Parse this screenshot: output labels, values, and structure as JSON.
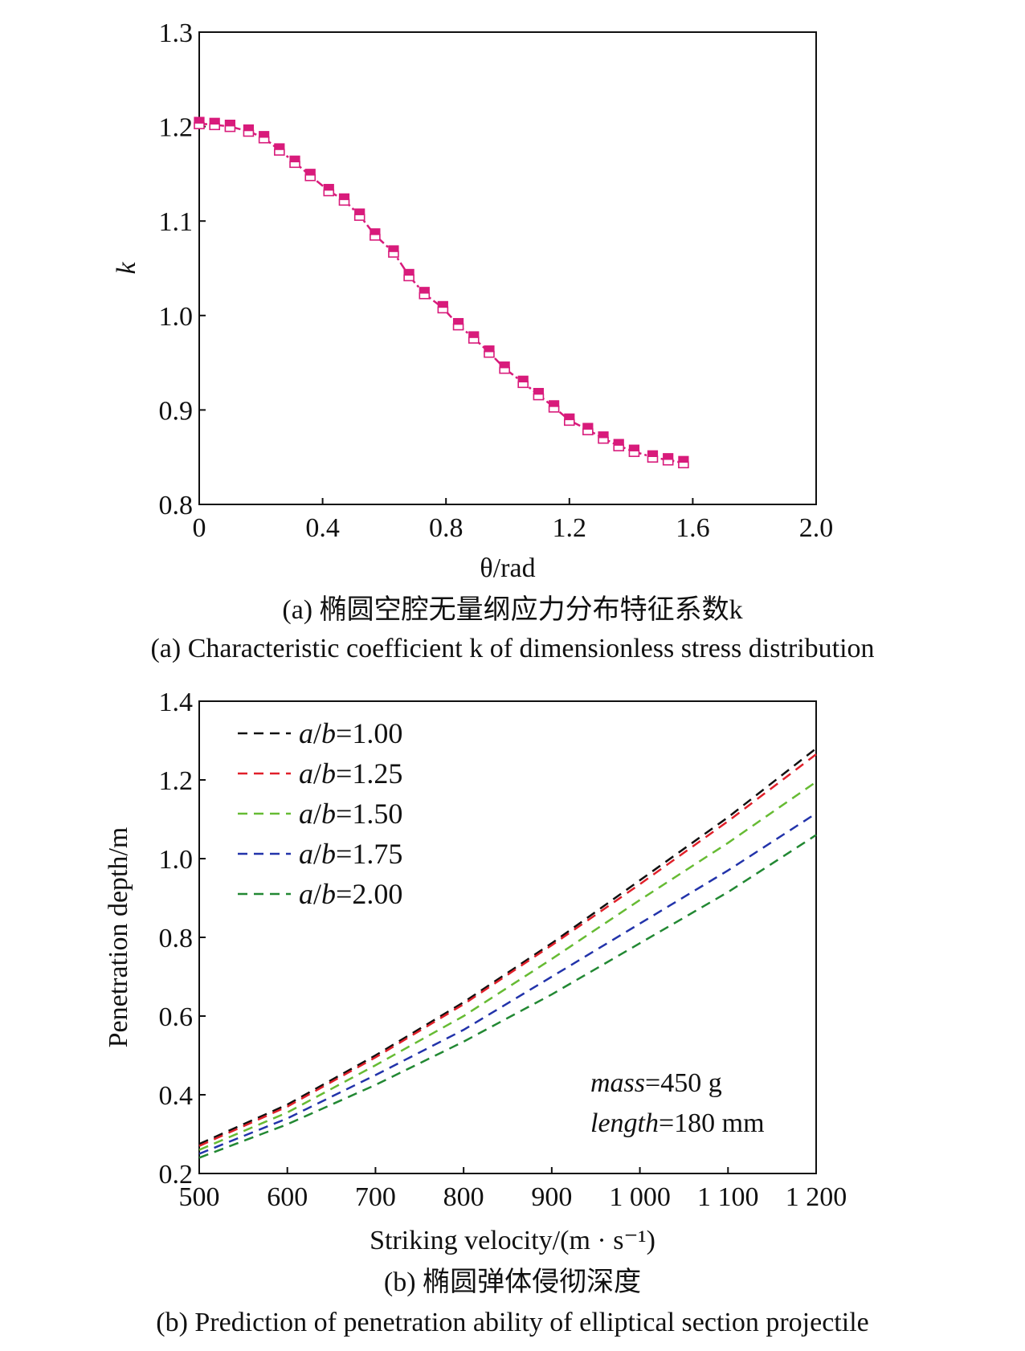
{
  "chart_data": [
    {
      "type": "line",
      "xlabel": "θ/rad",
      "ylabel": "k",
      "xlim": [
        0,
        2.0
      ],
      "ylim": [
        0.8,
        1.3
      ],
      "xticks": [
        "0",
        "0.4",
        "0.8",
        "1.2",
        "1.6",
        "2.0"
      ],
      "yticks": [
        "0.8",
        "0.9",
        "1.0",
        "1.1",
        "1.2",
        "1.3"
      ],
      "color": "#d81b7b",
      "grid": false,
      "series": [
        {
          "x": [
            0,
            0.05,
            0.1,
            0.16,
            0.21,
            0.26,
            0.31,
            0.36,
            0.42,
            0.47,
            0.52,
            0.57,
            0.63,
            0.68,
            0.73,
            0.79,
            0.84,
            0.89,
            0.94,
            0.99,
            1.05,
            1.1,
            1.15,
            1.2,
            1.26,
            1.31,
            1.36,
            1.41,
            1.47,
            1.52,
            1.57
          ],
          "values": [
            1.203,
            1.202,
            1.2,
            1.195,
            1.188,
            1.175,
            1.162,
            1.148,
            1.132,
            1.122,
            1.106,
            1.085,
            1.067,
            1.042,
            1.023,
            1.008,
            0.99,
            0.976,
            0.961,
            0.944,
            0.929,
            0.916,
            0.903,
            0.889,
            0.879,
            0.87,
            0.862,
            0.856,
            0.85,
            0.847,
            0.844
          ]
        }
      ],
      "caption_cn": "(a) 椭圆空腔无量纲应力分布特征系数k",
      "caption_en": "(a) Characteristic coefficient k of dimensionless stress distribution"
    },
    {
      "type": "line",
      "xlabel": "Striking velocity/(m · s⁻¹)",
      "ylabel": "Penetration depth/m",
      "xlim": [
        500,
        1200
      ],
      "ylim": [
        0.2,
        1.4
      ],
      "xticks": [
        "500",
        "600",
        "700",
        "800",
        "900",
        "1 000",
        "1 100",
        "1 200"
      ],
      "yticks": [
        "0.2",
        "0.4",
        "0.6",
        "0.8",
        "1.0",
        "1.2",
        "1.4"
      ],
      "grid": false,
      "legend": "top-left",
      "x": [
        500,
        600,
        700,
        800,
        900,
        1000,
        1100,
        1200
      ],
      "series": [
        {
          "name": "a/b=1.00",
          "color": "#111111",
          "values": [
            0.275,
            0.375,
            0.5,
            0.635,
            0.785,
            0.945,
            1.105,
            1.28
          ]
        },
        {
          "name": "a/b=1.25",
          "color": "#e0202a",
          "values": [
            0.27,
            0.37,
            0.495,
            0.63,
            0.78,
            0.935,
            1.095,
            1.265
          ]
        },
        {
          "name": "a/b=1.50",
          "color": "#66bb33",
          "values": [
            0.26,
            0.355,
            0.475,
            0.6,
            0.745,
            0.895,
            1.04,
            1.195
          ]
        },
        {
          "name": "a/b=1.75",
          "color": "#2233aa",
          "values": [
            0.25,
            0.34,
            0.45,
            0.565,
            0.7,
            0.835,
            0.97,
            1.115
          ]
        },
        {
          "name": "a/b=2.00",
          "color": "#228833",
          "values": [
            0.24,
            0.325,
            0.425,
            0.535,
            0.655,
            0.785,
            0.915,
            1.06
          ]
        }
      ],
      "annotation": {
        "mass_label": "mass",
        "mass_value": "=450 g",
        "length_label": "length",
        "length_value": "=180 mm"
      },
      "caption_cn": "(b) 椭圆弹体侵彻深度",
      "caption_en": "(b) Prediction of penetration ability of elliptical section projectile"
    }
  ]
}
